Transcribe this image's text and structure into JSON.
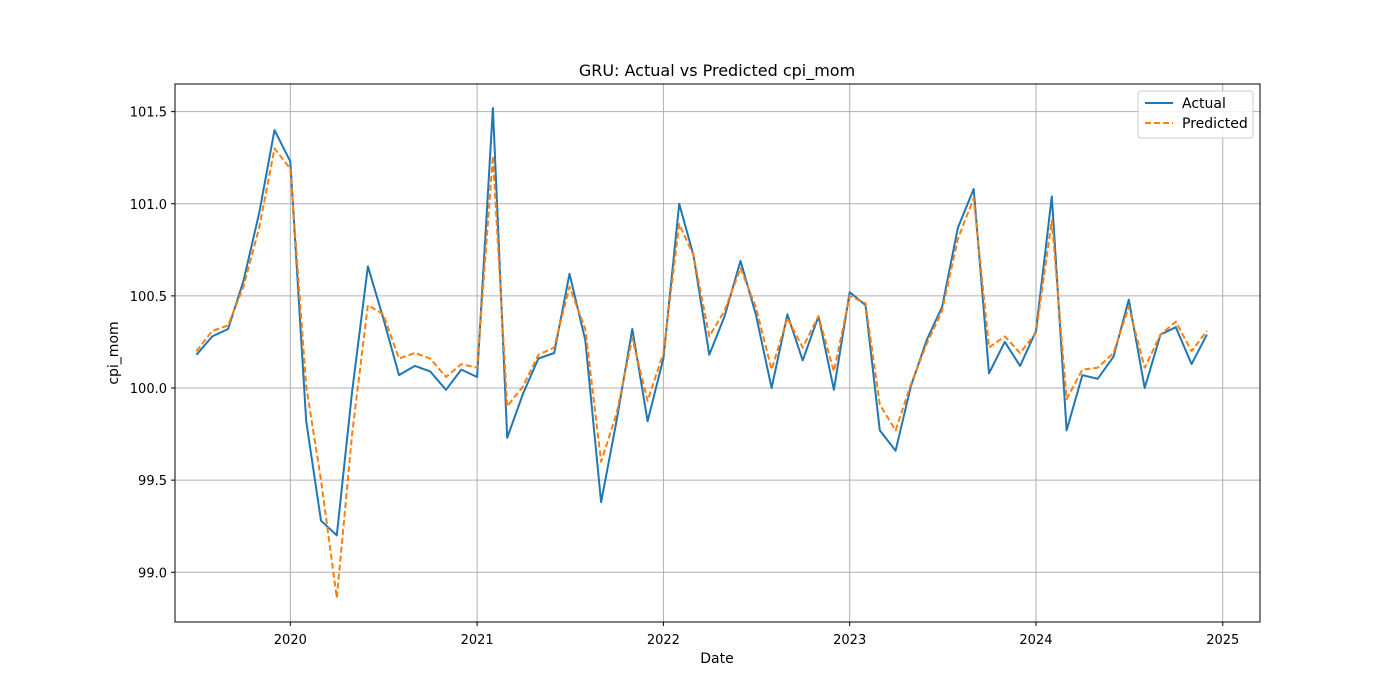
{
  "chart_data": {
    "type": "line",
    "title": "GRU: Actual vs Predicted cpi_mom",
    "xlabel": "Date",
    "ylabel": "cpi_mom",
    "x_ticks": [
      "2020",
      "2021",
      "2022",
      "2023",
      "2024",
      "2025"
    ],
    "y_ticks": [
      "99.0",
      "99.5",
      "100.0",
      "100.5",
      "101.0",
      "101.5"
    ],
    "ylim": [
      98.73,
      101.65
    ],
    "xlim": [
      "2019-05-20",
      "2025-03-15"
    ],
    "grid": true,
    "legend_position": "top-right",
    "x": [
      "2019-07",
      "2019-08",
      "2019-09",
      "2019-10",
      "2019-11",
      "2019-12",
      "2020-01",
      "2020-02",
      "2020-03",
      "2020-04",
      "2020-05",
      "2020-06",
      "2020-07",
      "2020-08",
      "2020-09",
      "2020-10",
      "2020-11",
      "2020-12",
      "2021-01",
      "2021-02",
      "2021-03",
      "2021-04",
      "2021-05",
      "2021-06",
      "2021-07",
      "2021-08",
      "2021-09",
      "2021-10",
      "2021-11",
      "2021-12",
      "2022-01",
      "2022-02",
      "2022-03",
      "2022-04",
      "2022-05",
      "2022-06",
      "2022-07",
      "2022-08",
      "2022-09",
      "2022-10",
      "2022-11",
      "2022-12",
      "2023-01",
      "2023-02",
      "2023-03",
      "2023-04",
      "2023-05",
      "2023-06",
      "2023-07",
      "2023-08",
      "2023-09",
      "2023-10",
      "2023-11",
      "2023-12",
      "2024-01",
      "2024-02",
      "2024-03",
      "2024-04",
      "2024-05",
      "2024-06",
      "2024-07",
      "2024-08",
      "2024-09",
      "2024-10",
      "2024-11",
      "2024-12"
    ],
    "series": [
      {
        "name": "Actual",
        "color": "#1f77b4",
        "style": "solid",
        "values": [
          100.18,
          100.28,
          100.32,
          100.58,
          100.95,
          101.4,
          101.23,
          99.82,
          99.28,
          99.2,
          99.98,
          100.66,
          100.38,
          100.07,
          100.12,
          100.09,
          99.99,
          100.1,
          100.06,
          101.52,
          99.73,
          99.97,
          100.16,
          100.19,
          100.62,
          100.26,
          99.38,
          99.82,
          100.32,
          99.82,
          100.16,
          101.0,
          100.72,
          100.18,
          100.39,
          100.69,
          100.4,
          100.0,
          100.4,
          100.15,
          100.39,
          99.99,
          100.52,
          100.45,
          99.77,
          99.66,
          100.01,
          100.26,
          100.44,
          100.87,
          101.08,
          100.08,
          100.25,
          100.12,
          100.31,
          101.04,
          99.77,
          100.07,
          100.05,
          100.17,
          100.48,
          100.0,
          100.29,
          100.33,
          100.13,
          100.29
        ]
      },
      {
        "name": "Predicted",
        "color": "#ff7f0e",
        "style": "dashed",
        "values": [
          100.2,
          100.31,
          100.34,
          100.55,
          100.87,
          101.3,
          101.19,
          100.01,
          99.5,
          98.86,
          99.75,
          100.45,
          100.4,
          100.16,
          100.19,
          100.16,
          100.06,
          100.13,
          100.11,
          101.26,
          99.9,
          100.01,
          100.18,
          100.22,
          100.55,
          100.32,
          99.6,
          99.86,
          100.27,
          99.93,
          100.19,
          100.89,
          100.72,
          100.28,
          100.42,
          100.65,
          100.44,
          100.1,
          100.38,
          100.22,
          100.39,
          100.09,
          100.5,
          100.46,
          99.91,
          99.77,
          100.02,
          100.24,
          100.42,
          100.81,
          101.03,
          100.22,
          100.28,
          100.19,
          100.3,
          100.91,
          99.94,
          100.1,
          100.11,
          100.19,
          100.44,
          100.11,
          100.29,
          100.36,
          100.2,
          100.31
        ]
      }
    ]
  }
}
